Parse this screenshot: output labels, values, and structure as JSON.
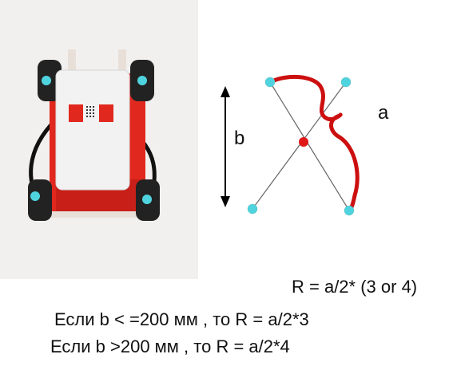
{
  "diagram": {
    "label_b": "b",
    "label_a": "a",
    "colors": {
      "marker": "#4fd4df",
      "center": "#e01818",
      "path": "#cc0f0f",
      "line": "#666666",
      "arrow": "#000000",
      "robot_body": "#e1281e",
      "robot_cover": "#f2f2f2",
      "wheel": "#222222",
      "photo_bg": "#f2f0ef"
    }
  },
  "formulas": {
    "main": "R = a/2* (3 or 4)",
    "rule1": "Если b < =200  мм , то R = a/2*3",
    "rule2": "Если b >200  мм , то R = a/2*4"
  }
}
